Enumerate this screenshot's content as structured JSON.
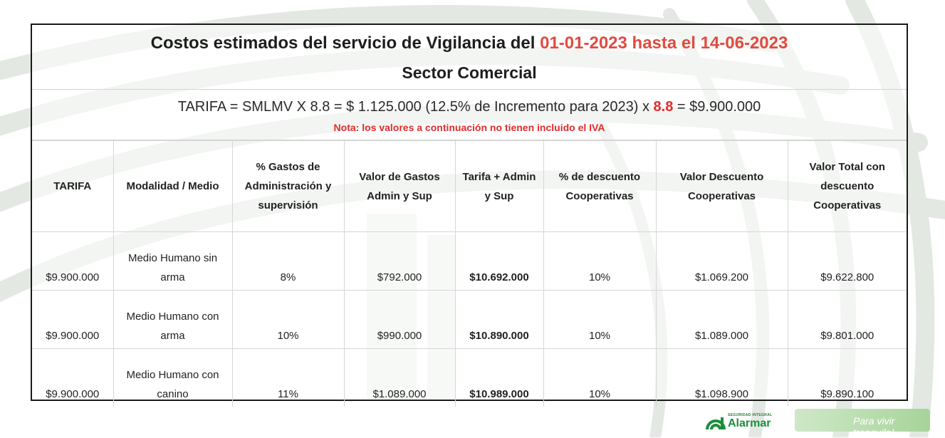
{
  "title": {
    "prefix": "Costos estimados del servicio de Vigilancia del",
    "date_range": "01-01-2023 hasta el 14-06-2023",
    "sector": "Sector Comercial"
  },
  "tarifa": {
    "formula_prefix": "TARIFA = SMLMV X 8.8 = $ 1.125.000 (12.5% de Incremento para 2023) x",
    "factor": "8.8",
    "formula_suffix": "= $9.900.000",
    "note": "Nota: los valores a continuación no tienen incluido el IVA"
  },
  "table": {
    "headers": [
      "TARIFA",
      "Modalidad / Medio",
      "% Gastos de Administración y supervisión",
      "Valor de Gastos Admin y Sup",
      "Tarifa + Admin y Sup",
      "% de descuento Cooperativas",
      "Valor Descuento Cooperativas",
      "Valor Total con descuento Cooperativas"
    ],
    "rows": [
      [
        "$9.900.000",
        "Medio Humano sin arma",
        "8%",
        "$792.000",
        "$10.692.000",
        "10%",
        "$1.069.200",
        "$9.622.800"
      ],
      [
        "$9.900.000",
        "Medio Humano con arma",
        "10%",
        "$990.000",
        "$10.890.000",
        "10%",
        "$1.089.000",
        "$9.801.000"
      ],
      [
        "$9.900.000",
        "Medio Humano con canino",
        "11%",
        "$1.089.000",
        "$10.989.000",
        "10%",
        "$1.098.900",
        "$9.890.100"
      ]
    ]
  },
  "logo": {
    "small_text": "SEGURIDAD INTEGRAL",
    "name": "Alarmar",
    "slogan": "Para vivir tranquilo!"
  },
  "colors": {
    "accent_red": "#e04b3f",
    "note_red": "#e32b2b",
    "brand_green": "#1b8e3a"
  }
}
